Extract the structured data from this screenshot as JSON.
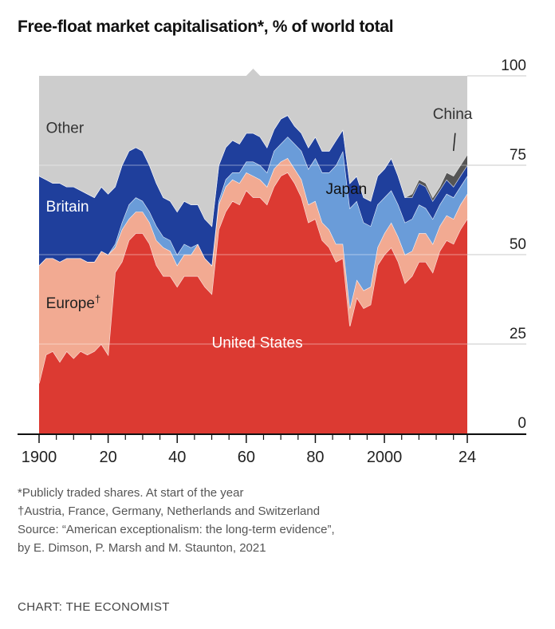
{
  "title": "Free-float market capitalisation*, % of world total",
  "chart_data": {
    "type": "area",
    "stacked": true,
    "title": "Free-float market capitalisation*, % of world total",
    "x_range": [
      1900,
      2024
    ],
    "ylim": [
      0,
      100
    ],
    "y_ticks": [
      "100",
      "75",
      "50",
      "25",
      "0"
    ],
    "x_tick_labels": [
      {
        "year": 1900,
        "label": "1900"
      },
      {
        "year": 1920,
        "label": "20"
      },
      {
        "year": 1940,
        "label": "40"
      },
      {
        "year": 1960,
        "label": "60"
      },
      {
        "year": 1980,
        "label": "80"
      },
      {
        "year": 2000,
        "label": "2000"
      },
      {
        "year": 2024,
        "label": "24"
      }
    ],
    "x_minor_ticks": [
      1905,
      1910,
      1915,
      1925,
      1930,
      1935,
      1945,
      1950,
      1955,
      1965,
      1970,
      1975,
      1985,
      1990,
      1995,
      2005,
      2010,
      2015,
      2020
    ],
    "years": [
      1900,
      1902,
      1904,
      1906,
      1908,
      1910,
      1912,
      1914,
      1916,
      1918,
      1920,
      1922,
      1924,
      1926,
      1928,
      1930,
      1932,
      1934,
      1936,
      1938,
      1940,
      1942,
      1944,
      1946,
      1948,
      1950,
      1952,
      1954,
      1956,
      1958,
      1960,
      1962,
      1964,
      1966,
      1968,
      1970,
      1972,
      1974,
      1976,
      1978,
      1980,
      1982,
      1984,
      1986,
      1988,
      1990,
      1992,
      1994,
      1996,
      1998,
      2000,
      2002,
      2004,
      2006,
      2008,
      2010,
      2012,
      2014,
      2016,
      2018,
      2020,
      2022,
      2024
    ],
    "series": [
      {
        "name": "United States",
        "color": "#dc3a32",
        "values": [
          14,
          22,
          23,
          20,
          23,
          21,
          23,
          22,
          23,
          25,
          22,
          45,
          48,
          54,
          56,
          56,
          53,
          47,
          44,
          44,
          41,
          44,
          44,
          44,
          41,
          39,
          57,
          62,
          65,
          64,
          68,
          66,
          66,
          64,
          69,
          72,
          73,
          70,
          66,
          59,
          60,
          54,
          52,
          48,
          49,
          30,
          38,
          35,
          36,
          47,
          50,
          52,
          48,
          42,
          44,
          48,
          48,
          45,
          51,
          54,
          53,
          57,
          60
        ]
      },
      {
        "name": "Europe",
        "color": "#f2aa92",
        "values": [
          33,
          27,
          26,
          28,
          26,
          28,
          26,
          26,
          25,
          26,
          28,
          7,
          9,
          6,
          6,
          6,
          6,
          7,
          8,
          7,
          6,
          6,
          6,
          9,
          8,
          8,
          7,
          7,
          6,
          6,
          5,
          6,
          5,
          5,
          5,
          4,
          4,
          4,
          5,
          5,
          5,
          5,
          5,
          5,
          4,
          5,
          5,
          5,
          5,
          5,
          6,
          7,
          7,
          8,
          7,
          8,
          8,
          8,
          7,
          7,
          7,
          7,
          7
        ]
      },
      {
        "name": "Japan",
        "color": "#6a9cd9",
        "values": [
          0,
          0,
          0,
          0,
          0,
          0,
          0,
          0,
          0,
          0,
          0,
          1,
          2,
          4,
          4,
          3,
          3,
          4,
          3,
          3,
          3,
          3,
          2,
          0,
          0,
          0,
          1,
          2,
          2,
          3,
          3,
          4,
          4,
          4,
          5,
          5,
          6,
          7,
          8,
          10,
          12,
          14,
          16,
          22,
          26,
          28,
          22,
          19,
          17,
          12,
          10,
          9,
          9,
          9,
          9,
          8,
          7,
          7,
          6,
          6,
          6,
          5,
          5
        ]
      },
      {
        "name": "Britain",
        "color": "#1f3f9c",
        "values": [
          25,
          22,
          21,
          22,
          20,
          20,
          19,
          19,
          18,
          18,
          17,
          16,
          16,
          15,
          14,
          14,
          13,
          12,
          11,
          11,
          12,
          12,
          12,
          11,
          11,
          11,
          10,
          9,
          9,
          8,
          8,
          8,
          8,
          7,
          6,
          7,
          6,
          5,
          5,
          6,
          6,
          6,
          6,
          7,
          6,
          7,
          7,
          7,
          7,
          8,
          8,
          9,
          8,
          7,
          6,
          6,
          6,
          5,
          4,
          4,
          3,
          3,
          3
        ]
      },
      {
        "name": "China",
        "color": "#555555",
        "values": [
          0,
          0,
          0,
          0,
          0,
          0,
          0,
          0,
          0,
          0,
          0,
          0,
          0,
          0,
          0,
          0,
          0,
          0,
          0,
          0,
          0,
          0,
          0,
          0,
          0,
          0,
          0,
          0,
          0,
          0,
          0,
          0,
          0,
          0,
          0,
          0,
          0,
          0,
          0,
          0,
          0,
          0,
          0,
          0,
          0,
          0,
          0,
          0,
          0,
          0,
          0,
          0,
          0,
          0,
          1,
          1,
          1,
          1,
          1,
          2,
          3,
          3,
          3
        ]
      },
      {
        "name": "Other",
        "color": "#cdcdcd",
        "values": [
          28,
          29,
          30,
          30,
          31,
          31,
          32,
          33,
          34,
          31,
          33,
          31,
          25,
          21,
          20,
          21,
          25,
          30,
          34,
          35,
          38,
          35,
          36,
          36,
          40,
          42,
          25,
          20,
          18,
          19,
          16,
          18,
          17,
          20,
          15,
          12,
          11,
          14,
          16,
          20,
          17,
          21,
          21,
          18,
          15,
          30,
          28,
          34,
          35,
          28,
          26,
          23,
          28,
          34,
          33,
          29,
          30,
          34,
          31,
          27,
          28,
          25,
          22
        ]
      }
    ],
    "stack_order": [
      "United States",
      "Europe",
      "Japan",
      "Britain",
      "China",
      "Other"
    ],
    "series_labels": [
      {
        "text": "Other",
        "series": "Other",
        "color": "#333333",
        "year": 1902,
        "value": 84
      },
      {
        "text": "China",
        "series": "China",
        "color": "#333333",
        "year": 2014,
        "value": 88
      },
      {
        "text": "Britain",
        "series": "Britain",
        "color": "#ffffff",
        "year": 1902,
        "value": 62
      },
      {
        "text": "Japan",
        "series": "Japan",
        "color": "#111111",
        "year": 1983,
        "value": 67
      },
      {
        "text": "Europe†",
        "series": "Europe",
        "color": "#222222",
        "year": 1902,
        "value": 35
      },
      {
        "text": "United States",
        "series": "United States",
        "color": "#ffffff",
        "year": 1950,
        "value": 24
      }
    ]
  },
  "notes": {
    "footnote_1": "*Publicly traded shares. At start of the year",
    "footnote_2": "†Austria, France, Germany, Netherlands and Switzerland",
    "source_1": "Source: “American exceptionalism: the long-term evidence”,",
    "source_2": "by E. Dimson, P. Marsh and M. Staunton, 2021"
  },
  "credit": "CHART: THE ECONOMIST"
}
